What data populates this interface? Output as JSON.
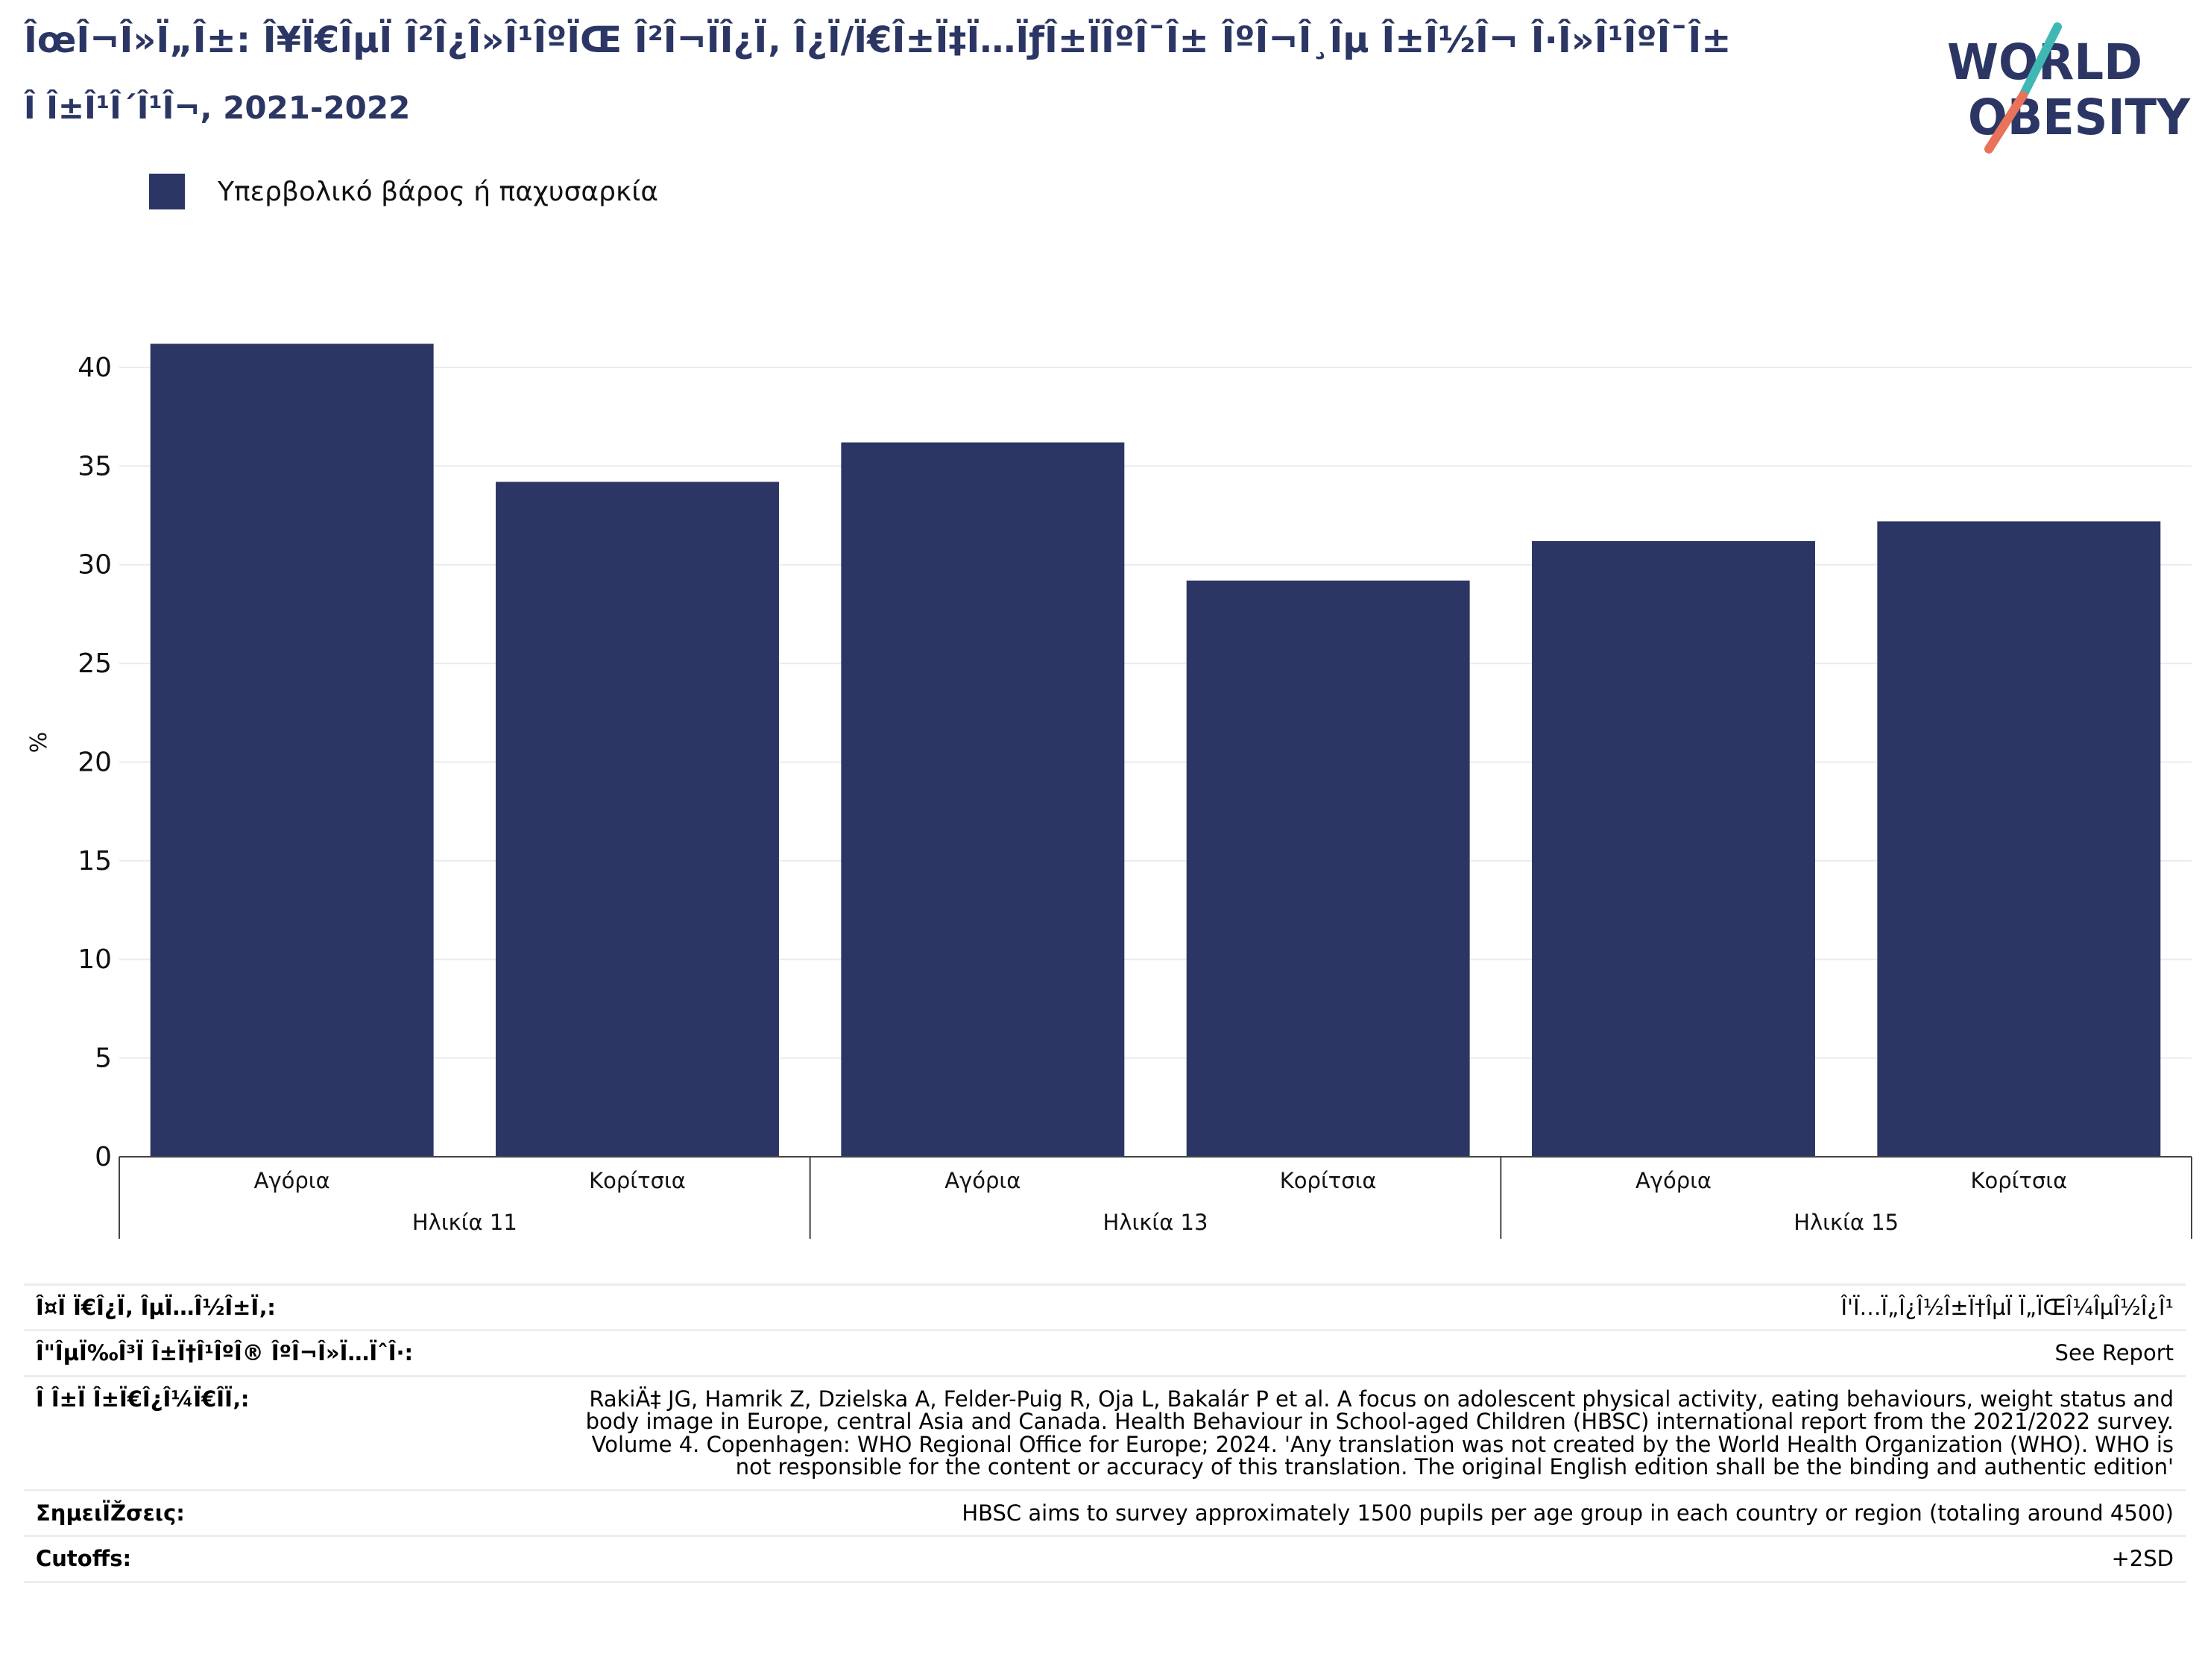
{
  "header": {
    "title": "ÎœÎ¬Î»Ï„Î±: Î¥Ï€ÎµÏ Î²Î¿Î»Î¹ÎºÏŒ Î²Î¬ÏÎ¿Ï‚ Î¿Ï/Ï€Î±Ï‡Ï…ÏƒÎ±ÏÎºÎ¯Î± ÎºÎ¬Î¸Îµ Î±Î½Î¬ Î·Î»Î¹ÎºÎ¯Î±",
    "subtitle": "Î Î±Î¹Î´Î¹Î¬, 2021-2022"
  },
  "logo": {
    "line1_prefix": "W",
    "line1_o": "O",
    "line1_suffix": "RLD",
    "line2_o": "O",
    "line2_suffix": "BESITY",
    "text_color": "#2b3664",
    "slash_teal": "#3fb8b4",
    "slash_coral": "#e8735a"
  },
  "legend": {
    "label": "Υπερβολικό βάρος ή παχυσαρκία",
    "color": "#2b3664"
  },
  "chart_data": {
    "type": "bar",
    "ylabel": "%",
    "ylim": [
      0,
      42
    ],
    "yticks": [
      0,
      5,
      10,
      15,
      20,
      25,
      30,
      35,
      40
    ],
    "grid": true,
    "legend_position": "top-left",
    "bar_color": "#2b3664",
    "groups": [
      "Ηλικία 11",
      "Ηλικία 13",
      "Ηλικία 15"
    ],
    "categories": [
      "Αγόρια",
      "Κορίτσια",
      "Αγόρια",
      "Κορίτσια",
      "Αγόρια",
      "Κορίτσια"
    ],
    "series": [
      {
        "name": "Υπερβολικό βάρος ή παχυσαρκία",
        "values": [
          41.2,
          34.2,
          36.2,
          29.2,
          31.2,
          32.2
        ]
      }
    ]
  },
  "notes": [
    {
      "label": "Î¤Ï Ï€Î¿Ï‚ ÎµÏ…Î½Î±Ï‚:",
      "value": "Î'Ï…Ï„Î¿Î½Î±Ï†ÎµÏ Ï„ÏŒÎ¼ÎµÎ½Î¿Î¹"
    },
    {
      "label": "Î\"ÎµÏ‰Î³Ï Î±Ï†Î¹ÎºÎ® ÎºÎ¬Î»Ï…ÏˆÎ·:",
      "value": "See Report"
    },
    {
      "label": "Î Î±Ï Î±Ï€Î¿Î¼Ï€Î­Ï‚:",
      "value": "RakiÄ‡ JG, Hamrik Z, Dzielska A, Felder-Puig R, Oja L, Bakalár P et al. A focus on adolescent physical activity, eating behaviours, weight status and body image in Europe, central Asia and Canada. Health Behaviour in School-aged Children (HBSC) international report from the 2021/2022 survey. Volume 4. Copenhagen: WHO Regional Office for Europe; 2024. 'Any translation was not created by the World Health Organization (WHO). WHO is not responsible for the content or accuracy of this translation. The original English edition shall be the binding and authentic edition'"
    },
    {
      "label": "ΣημειÏŽσεις:",
      "value": "HBSC aims to survey approximately 1500 pupils per age group in each country or region (totaling around 4500)"
    },
    {
      "label": "Cutoffs:",
      "value": "+2SD"
    }
  ]
}
